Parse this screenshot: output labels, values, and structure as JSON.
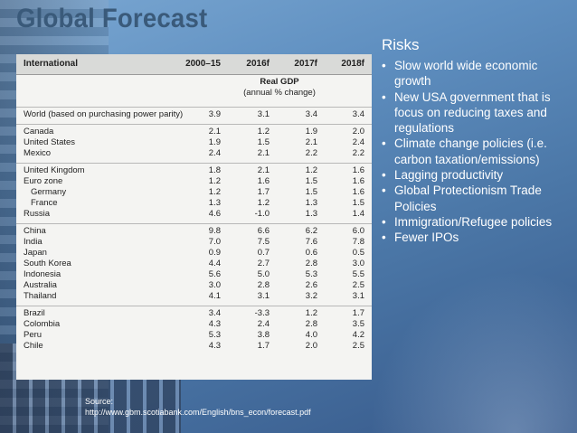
{
  "title": "Global Forecast",
  "table": {
    "header": {
      "region": "International",
      "periods": [
        "2000–15",
        "2016f",
        "2017f",
        "2018f"
      ]
    },
    "subheader": {
      "line1": "Real GDP",
      "line2": "(annual % change)"
    },
    "rows": [
      {
        "name": "World (based on purchasing power parity)",
        "values": [
          "3.9",
          "3.1",
          "3.4",
          "3.4"
        ]
      },
      {
        "name": "Canada",
        "values": [
          "2.1",
          "1.2",
          "1.9",
          "2.0"
        ]
      },
      {
        "name": "United States",
        "values": [
          "1.9",
          "1.5",
          "2.1",
          "2.4"
        ]
      },
      {
        "name": "Mexico",
        "values": [
          "2.4",
          "2.1",
          "2.2",
          "2.2"
        ]
      },
      {
        "name": "United Kingdom",
        "values": [
          "1.8",
          "2.1",
          "1.2",
          "1.6"
        ]
      },
      {
        "name": "Euro zone",
        "values": [
          "1.2",
          "1.6",
          "1.5",
          "1.6"
        ]
      },
      {
        "name": "Germany",
        "values": [
          "1.2",
          "1.7",
          "1.5",
          "1.6"
        ]
      },
      {
        "name": "France",
        "values": [
          "1.3",
          "1.2",
          "1.3",
          "1.5"
        ]
      },
      {
        "name": "Russia",
        "values": [
          "4.6",
          "-1.0",
          "1.3",
          "1.4"
        ]
      },
      {
        "name": "China",
        "values": [
          "9.8",
          "6.6",
          "6.2",
          "6.0"
        ]
      },
      {
        "name": "India",
        "values": [
          "7.0",
          "7.5",
          "7.6",
          "7.8"
        ]
      },
      {
        "name": "Japan",
        "values": [
          "0.9",
          "0.7",
          "0.6",
          "0.5"
        ]
      },
      {
        "name": "South Korea",
        "values": [
          "4.4",
          "2.7",
          "2.8",
          "3.0"
        ]
      },
      {
        "name": "Indonesia",
        "values": [
          "5.6",
          "5.0",
          "5.3",
          "5.5"
        ]
      },
      {
        "name": "Australia",
        "values": [
          "3.0",
          "2.8",
          "2.6",
          "2.5"
        ]
      },
      {
        "name": "Thailand",
        "values": [
          "4.1",
          "3.1",
          "3.2",
          "3.1"
        ]
      },
      {
        "name": "Brazil",
        "values": [
          "3.4",
          "-3.3",
          "1.2",
          "1.7"
        ]
      },
      {
        "name": "Colombia",
        "values": [
          "4.3",
          "2.4",
          "2.8",
          "3.5"
        ]
      },
      {
        "name": "Peru",
        "values": [
          "5.3",
          "3.8",
          "4.0",
          "4.2"
        ]
      },
      {
        "name": "Chile",
        "values": [
          "4.3",
          "1.7",
          "2.0",
          "2.5"
        ]
      }
    ]
  },
  "source": {
    "label": "Source:",
    "url": "http://www.gbm.scotiabank.com/English/bns_econ/forecast.pdf"
  },
  "risks": {
    "title": "Risks",
    "items": [
      "Slow world wide economic growth",
      "New USA government that is focus on reducing taxes and regulations",
      "Climate change policies (i.e. carbon taxation/emissions)",
      "Lagging productivity",
      "Global Protectionism Trade Policies",
      "Immigration/Refugee policies",
      "Fewer IPOs"
    ]
  },
  "colors": {
    "title": "#3a5a7a",
    "background": "#5f8fc0",
    "table_panel": "#f4f4f2",
    "text_light": "#ffffff"
  }
}
